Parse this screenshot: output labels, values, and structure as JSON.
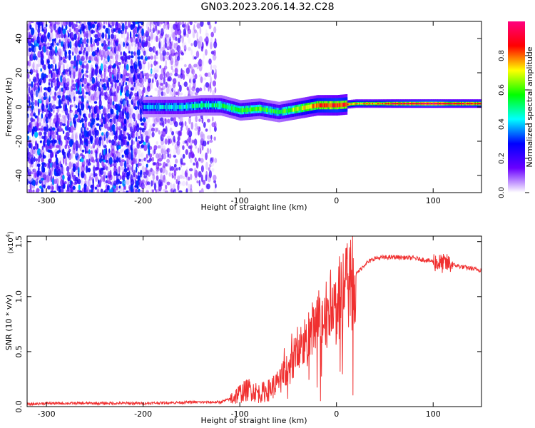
{
  "title": "GN03.2023.206.14.32.C28",
  "chart_data": [
    {
      "type": "heatmap",
      "xlabel": "Height of straight line (km)",
      "ylabel": "Frequency (Hz)",
      "xlim": [
        -320,
        150
      ],
      "ylim": [
        -50,
        50
      ],
      "xticks": [
        -300,
        -200,
        -100,
        0,
        100
      ],
      "yticks": [
        -40,
        -20,
        0,
        20,
        40
      ],
      "colorbar": {
        "label": "Normalized spectral amplitude",
        "range": [
          0.0,
          1.0
        ],
        "ticks": [
          "0.0",
          "0.2",
          "0.4",
          "0.6",
          "0.8"
        ],
        "colormap": [
          "#ffffff",
          "#6a00ff",
          "#0000ff",
          "#00ffff",
          "#00ff00",
          "#ffff00",
          "#ff0000",
          "#ff0080"
        ]
      },
      "noise_region_x": [
        -320,
        -125
      ],
      "signal_band": {
        "x": [
          -200,
          -180,
          -160,
          -140,
          -120,
          -100,
          -80,
          -60,
          -40,
          -20,
          0,
          20,
          40,
          60,
          80,
          100,
          120,
          150
        ],
        "center_freq": [
          0,
          0,
          0,
          1,
          1,
          -2,
          -1,
          -3,
          -1,
          1,
          1,
          2,
          2,
          2,
          2,
          2,
          2,
          2
        ],
        "peak_amplitude": [
          0.3,
          0.35,
          0.35,
          0.4,
          0.45,
          0.5,
          0.5,
          0.45,
          0.6,
          0.75,
          0.8,
          0.7,
          0.7,
          0.8,
          0.85,
          0.9,
          0.8,
          0.8
        ]
      }
    },
    {
      "type": "line",
      "xlabel": "Height of straight line (km)",
      "ylabel": "SNR (10 * v/v)",
      "y_scale_label": "(x10",
      "y_scale_exponent": "4",
      "y_scale_suffix": ")",
      "xlim": [
        -320,
        150
      ],
      "ylim": [
        0,
        1.55
      ],
      "xticks": [
        -300,
        -200,
        -100,
        0,
        100
      ],
      "yticks": [
        "0.0",
        "0.5",
        "1.0",
        "1.5"
      ],
      "line_color": "#f03030",
      "x": [
        -320,
        -300,
        -250,
        -200,
        -150,
        -120,
        -110,
        -100,
        -90,
        -80,
        -70,
        -60,
        -50,
        -40,
        -30,
        -20,
        -10,
        0,
        10,
        20,
        30,
        40,
        60,
        80,
        100,
        108,
        115,
        130,
        150
      ],
      "y": [
        0.02,
        0.03,
        0.03,
        0.03,
        0.04,
        0.04,
        0.07,
        0.12,
        0.16,
        0.12,
        0.15,
        0.22,
        0.35,
        0.5,
        0.6,
        0.75,
        0.85,
        0.95,
        1.05,
        1.2,
        1.3,
        1.35,
        1.36,
        1.35,
        1.32,
        1.3,
        1.3,
        1.27,
        1.24
      ]
    }
  ]
}
